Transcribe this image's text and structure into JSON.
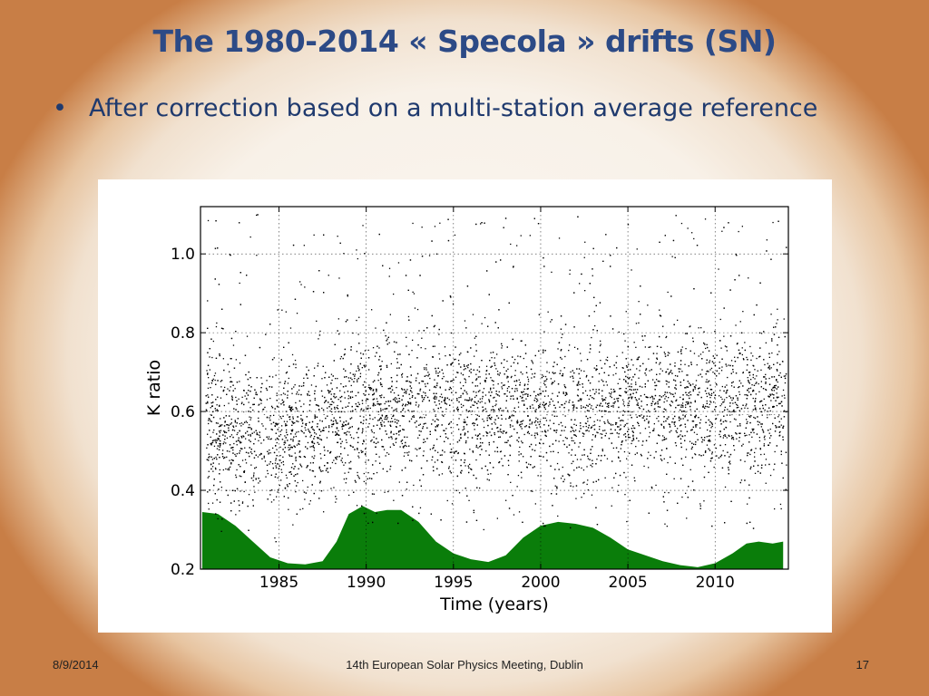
{
  "slide": {
    "title": "The 1980-2014 « Specola » drifts (SN)",
    "bullet": "After correction based on a multi-station average reference",
    "footer_date": "8/9/2014",
    "footer_event": "14th European Solar Physics Meeting, Dublin",
    "footer_page": "17"
  },
  "chart_data": {
    "type": "scatter",
    "xlabel": "Time (years)",
    "ylabel": "K ratio",
    "xlim": [
      1980.5,
      2014.2
    ],
    "ylim": [
      0.2,
      1.12
    ],
    "xticks": [
      1985,
      1990,
      1995,
      2000,
      2005,
      2010
    ],
    "yticks": [
      0.2,
      0.4,
      0.6,
      0.8,
      1.0
    ],
    "xtick_labels": [
      "1985",
      "1990",
      "1995",
      "2000",
      "2005",
      "2010"
    ],
    "ytick_labels": [
      "0.2",
      "0.4",
      "0.6",
      "0.8",
      "1.0"
    ],
    "grid": true,
    "reference_line": 0.595,
    "series": [
      {
        "kind": "scatter",
        "color": "#000000",
        "mean_profile": {
          "x": [
            1981,
            1985,
            1987,
            1989,
            1991,
            1993,
            1996,
            1999,
            2002,
            2005,
            2008,
            2011,
            2014
          ],
          "y": [
            0.56,
            0.54,
            0.55,
            0.6,
            0.61,
            0.61,
            0.6,
            0.6,
            0.6,
            0.61,
            0.62,
            0.61,
            0.62
          ]
        },
        "spread": 0.09,
        "range_y": [
          0.25,
          1.1
        ]
      },
      {
        "kind": "area",
        "color": "#0a7d0a",
        "x": [
          1980.6,
          1981.5,
          1982.5,
          1983.5,
          1984.5,
          1985.5,
          1986.5,
          1987.5,
          1988.3,
          1989.0,
          1989.8,
          1990.5,
          1991.2,
          1992.0,
          1993.0,
          1994.0,
          1995.0,
          1996.0,
          1997.0,
          1998.0,
          1999.0,
          2000.0,
          2001.0,
          2002.0,
          2003.0,
          2004.0,
          2005.0,
          2006.0,
          2007.0,
          2008.0,
          2009.0,
          2010.0,
          2011.0,
          2011.8,
          2012.5,
          2013.3,
          2013.9
        ],
        "y": [
          0.345,
          0.34,
          0.31,
          0.27,
          0.23,
          0.215,
          0.212,
          0.22,
          0.27,
          0.34,
          0.36,
          0.345,
          0.35,
          0.35,
          0.32,
          0.27,
          0.24,
          0.225,
          0.218,
          0.235,
          0.28,
          0.31,
          0.32,
          0.315,
          0.305,
          0.28,
          0.25,
          0.235,
          0.22,
          0.21,
          0.205,
          0.215,
          0.24,
          0.265,
          0.27,
          0.265,
          0.27
        ]
      }
    ]
  }
}
